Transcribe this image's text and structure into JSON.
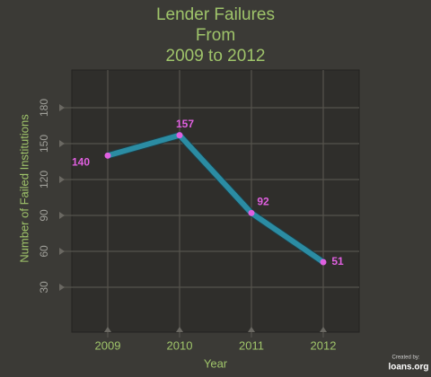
{
  "chart_data": {
    "type": "line",
    "title": [
      "Lender Failures",
      "From",
      "2009 to 2012"
    ],
    "xlabel": "Year",
    "ylabel": "Number of Failed Institutions",
    "categories": [
      "2009",
      "2010",
      "2011",
      "2012"
    ],
    "series": [
      {
        "name": "Lender Failures",
        "color": "#2b8ca3",
        "marker_color": "#e060e0",
        "values": [
          140,
          157,
          92,
          51
        ]
      }
    ],
    "ylim": [
      0,
      210
    ],
    "yticks": [
      30,
      60,
      90,
      120,
      150,
      180
    ],
    "grid": true,
    "annotations": [
      "Created by:",
      "loans.org"
    ]
  }
}
